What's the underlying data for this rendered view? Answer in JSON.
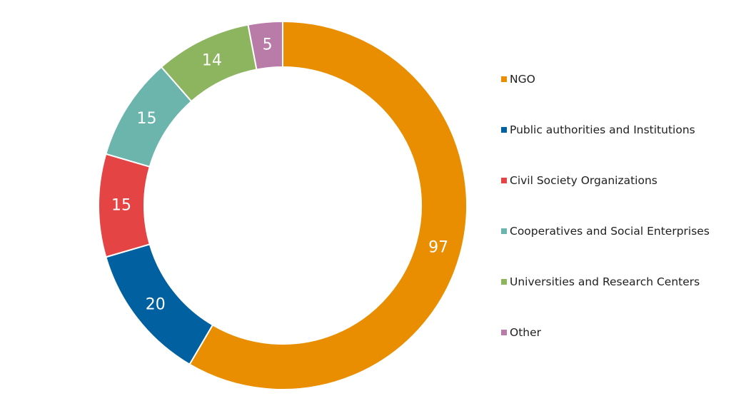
{
  "chart_data": {
    "type": "pie",
    "donut": true,
    "title": "",
    "legend_position": "right",
    "categories": [
      "NGO",
      "Public authorities and Institutions",
      "Civil Society Organizations",
      "Cooperatives and Social Enterprises",
      "Universities and Research Centers",
      "Other"
    ],
    "values": [
      97,
      20,
      15,
      15,
      14,
      5
    ],
    "colors": [
      "#E88E00",
      "#0060A0",
      "#E54444",
      "#6BB5AD",
      "#8DB45E",
      "#B97CA8"
    ]
  }
}
